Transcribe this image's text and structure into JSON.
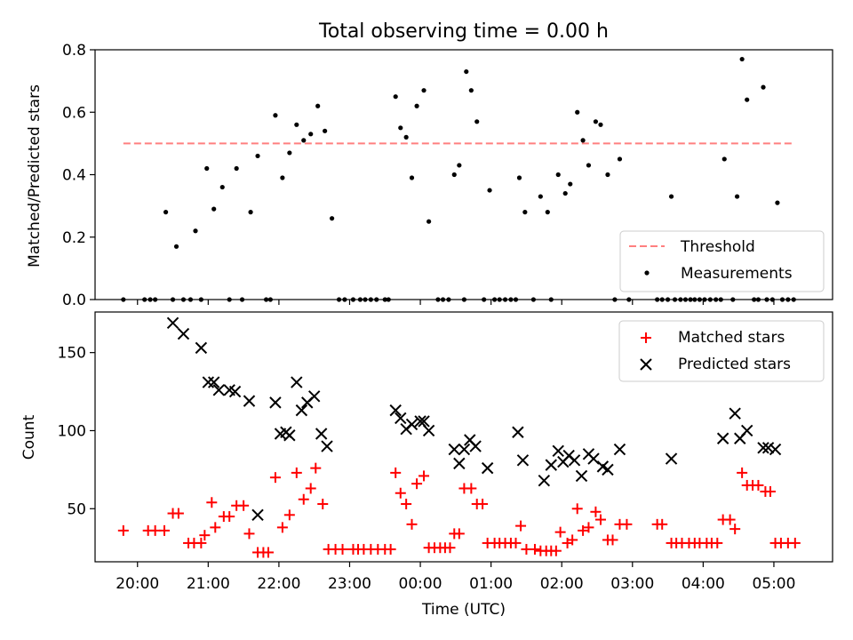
{
  "chart_data": [
    {
      "type": "scatter",
      "title": "Total observing time = 0.00 h",
      "ylabel": "Matched/Predicted stars",
      "ylim": [
        0,
        0.8
      ],
      "yticks": [
        "0.0",
        "0.2",
        "0.4",
        "0.6",
        "0.8"
      ],
      "xlim_hours": [
        -4.6,
        5.83
      ],
      "xticks": [
        -4,
        -3,
        -2,
        -1,
        0,
        1,
        2,
        3,
        4,
        5
      ],
      "threshold": {
        "value": 0.5,
        "x_range": [
          -4.2,
          5.3
        ],
        "color": "#ff7f7f",
        "label": "Threshold"
      },
      "legend": {
        "position": "bottom-right",
        "entries": [
          "Threshold",
          "Measurements"
        ]
      },
      "series": [
        {
          "name": "Measurements",
          "color": "#000000",
          "points": [
            [
              -4.2,
              0
            ],
            [
              -3.9,
              0
            ],
            [
              -3.82,
              0
            ],
            [
              -3.75,
              0
            ],
            [
              -3.6,
              0.28
            ],
            [
              -3.5,
              0
            ],
            [
              -3.45,
              0.17
            ],
            [
              -3.35,
              0
            ],
            [
              -3.25,
              0
            ],
            [
              -3.1,
              0
            ],
            [
              -3.18,
              0.22
            ],
            [
              -3.02,
              0.42
            ],
            [
              -2.92,
              0.29
            ],
            [
              -2.8,
              0.36
            ],
            [
              -2.7,
              0
            ],
            [
              -2.6,
              0.42
            ],
            [
              -2.52,
              0
            ],
            [
              -2.4,
              0.28
            ],
            [
              -2.3,
              0.46
            ],
            [
              -2.18,
              0
            ],
            [
              -2.12,
              0
            ],
            [
              -2.05,
              0.59
            ],
            [
              -1.95,
              0.39
            ],
            [
              -1.85,
              0.47
            ],
            [
              -1.75,
              0.56
            ],
            [
              -1.65,
              0.51
            ],
            [
              -1.55,
              0.53
            ],
            [
              -1.45,
              0.62
            ],
            [
              -1.35,
              0.54
            ],
            [
              -1.25,
              0.26
            ],
            [
              -1.15,
              0
            ],
            [
              -1.07,
              0
            ],
            [
              -0.95,
              0
            ],
            [
              -0.85,
              0
            ],
            [
              -0.78,
              0
            ],
            [
              -0.7,
              0
            ],
            [
              -0.62,
              0
            ],
            [
              -0.5,
              0
            ],
            [
              -0.45,
              0
            ],
            [
              -0.35,
              0.65
            ],
            [
              -0.28,
              0.55
            ],
            [
              -0.2,
              0.52
            ],
            [
              -0.12,
              0.39
            ],
            [
              -0.05,
              0.62
            ],
            [
              0.05,
              0.67
            ],
            [
              0.12,
              0.25
            ],
            [
              0.25,
              0
            ],
            [
              0.32,
              0
            ],
            [
              0.4,
              0
            ],
            [
              0.48,
              0.4
            ],
            [
              0.55,
              0.43
            ],
            [
              0.62,
              0
            ],
            [
              0.65,
              0.73
            ],
            [
              0.72,
              0.67
            ],
            [
              0.8,
              0.57
            ],
            [
              0.9,
              0
            ],
            [
              0.98,
              0.35
            ],
            [
              1.05,
              0
            ],
            [
              1.12,
              0
            ],
            [
              1.2,
              0
            ],
            [
              1.28,
              0
            ],
            [
              1.35,
              0
            ],
            [
              1.4,
              0.39
            ],
            [
              1.48,
              0.28
            ],
            [
              1.6,
              0
            ],
            [
              1.7,
              0.33
            ],
            [
              1.8,
              0.28
            ],
            [
              1.85,
              0
            ],
            [
              1.95,
              0.4
            ],
            [
              2.05,
              0.34
            ],
            [
              2.12,
              0.37
            ],
            [
              2.22,
              0.6
            ],
            [
              2.3,
              0.51
            ],
            [
              2.38,
              0.43
            ],
            [
              2.48,
              0.57
            ],
            [
              2.55,
              0.56
            ],
            [
              2.65,
              0.4
            ],
            [
              2.75,
              0
            ],
            [
              2.82,
              0.45
            ],
            [
              2.95,
              0
            ],
            [
              3.35,
              0
            ],
            [
              3.42,
              0
            ],
            [
              3.5,
              0
            ],
            [
              3.55,
              0.33
            ],
            [
              3.6,
              0
            ],
            [
              3.68,
              0
            ],
            [
              3.75,
              0
            ],
            [
              3.82,
              0
            ],
            [
              3.88,
              0
            ],
            [
              3.95,
              0
            ],
            [
              4.02,
              0
            ],
            [
              4.1,
              0
            ],
            [
              4.18,
              0
            ],
            [
              4.25,
              0
            ],
            [
              4.3,
              0.45
            ],
            [
              4.42,
              0
            ],
            [
              4.48,
              0.33
            ],
            [
              4.55,
              0.77
            ],
            [
              4.62,
              0.64
            ],
            [
              4.72,
              0
            ],
            [
              4.78,
              0
            ],
            [
              4.85,
              0.68
            ],
            [
              4.9,
              0
            ],
            [
              5.05,
              0.31
            ],
            [
              4.98,
              0
            ],
            [
              5.12,
              0
            ],
            [
              5.2,
              0
            ],
            [
              5.28,
              0
            ]
          ]
        }
      ]
    },
    {
      "type": "scatter",
      "xlabel": "Time (UTC)",
      "ylabel": "Count",
      "ylim": [
        16,
        176
      ],
      "yticks": [
        "50",
        "100",
        "150"
      ],
      "xlim_hours": [
        -4.6,
        5.83
      ],
      "xticks": [
        -4,
        -3,
        -2,
        -1,
        0,
        1,
        2,
        3,
        4,
        5
      ],
      "xtick_labels": [
        "20:00",
        "21:00",
        "22:00",
        "23:00",
        "00:00",
        "01:00",
        "02:00",
        "03:00",
        "04:00",
        "05:00"
      ],
      "legend": {
        "position": "top-right",
        "entries": [
          "Matched stars",
          "Predicted stars"
        ]
      },
      "series": [
        {
          "name": "Matched stars",
          "marker": "plus",
          "color": "#ff0000",
          "points": [
            [
              -4.2,
              36
            ],
            [
              -3.85,
              36
            ],
            [
              -3.75,
              36
            ],
            [
              -3.62,
              36
            ],
            [
              -3.5,
              47
            ],
            [
              -3.42,
              47
            ],
            [
              -3.28,
              28
            ],
            [
              -3.2,
              28
            ],
            [
              -3.1,
              28
            ],
            [
              -3.05,
              33
            ],
            [
              -2.95,
              54
            ],
            [
              -2.9,
              38
            ],
            [
              -2.78,
              45
            ],
            [
              -2.7,
              45
            ],
            [
              -2.6,
              52
            ],
            [
              -2.5,
              52
            ],
            [
              -2.42,
              34
            ],
            [
              -2.3,
              22
            ],
            [
              -2.22,
              22
            ],
            [
              -2.15,
              22
            ],
            [
              -2.05,
              70
            ],
            [
              -1.95,
              38
            ],
            [
              -1.85,
              46
            ],
            [
              -1.75,
              73
            ],
            [
              -1.65,
              56
            ],
            [
              -1.55,
              63
            ],
            [
              -1.48,
              76
            ],
            [
              -1.38,
              53
            ],
            [
              -1.3,
              24
            ],
            [
              -1.2,
              24
            ],
            [
              -1.1,
              24
            ],
            [
              -0.95,
              24
            ],
            [
              -0.88,
              24
            ],
            [
              -0.8,
              24
            ],
            [
              -0.7,
              24
            ],
            [
              -0.6,
              24
            ],
            [
              -0.5,
              24
            ],
            [
              -0.42,
              24
            ],
            [
              -0.35,
              73
            ],
            [
              -0.28,
              60
            ],
            [
              -0.2,
              53
            ],
            [
              -0.12,
              40
            ],
            [
              -0.05,
              66
            ],
            [
              0.05,
              71
            ],
            [
              0.12,
              25
            ],
            [
              0.2,
              25
            ],
            [
              0.28,
              25
            ],
            [
              0.35,
              25
            ],
            [
              0.42,
              25
            ],
            [
              0.48,
              34
            ],
            [
              0.55,
              34
            ],
            [
              0.62,
              63
            ],
            [
              0.72,
              63
            ],
            [
              0.8,
              53
            ],
            [
              0.88,
              53
            ],
            [
              0.95,
              28
            ],
            [
              1.05,
              28
            ],
            [
              1.12,
              28
            ],
            [
              1.2,
              28
            ],
            [
              1.28,
              28
            ],
            [
              1.35,
              28
            ],
            [
              1.42,
              39
            ],
            [
              1.5,
              24
            ],
            [
              1.62,
              24
            ],
            [
              1.7,
              23
            ],
            [
              1.78,
              23
            ],
            [
              1.85,
              23
            ],
            [
              1.92,
              23
            ],
            [
              1.98,
              35
            ],
            [
              2.08,
              28
            ],
            [
              2.15,
              30
            ],
            [
              2.22,
              50
            ],
            [
              2.3,
              36
            ],
            [
              2.38,
              38
            ],
            [
              2.48,
              48
            ],
            [
              2.55,
              43
            ],
            [
              2.65,
              30
            ],
            [
              2.72,
              30
            ],
            [
              2.82,
              40
            ],
            [
              2.92,
              40
            ],
            [
              3.35,
              40
            ],
            [
              3.42,
              40
            ],
            [
              3.55,
              28
            ],
            [
              3.62,
              28
            ],
            [
              3.7,
              28
            ],
            [
              3.8,
              28
            ],
            [
              3.88,
              28
            ],
            [
              3.95,
              28
            ],
            [
              4.05,
              28
            ],
            [
              4.12,
              28
            ],
            [
              4.2,
              28
            ],
            [
              4.28,
              43
            ],
            [
              4.38,
              43
            ],
            [
              4.45,
              37
            ],
            [
              4.55,
              73
            ],
            [
              4.62,
              65
            ],
            [
              4.7,
              65
            ],
            [
              4.78,
              65
            ],
            [
              4.88,
              61
            ],
            [
              4.95,
              61
            ],
            [
              5.02,
              28
            ],
            [
              5.1,
              28
            ],
            [
              5.2,
              28
            ],
            [
              5.3,
              28
            ]
          ]
        },
        {
          "name": "Predicted stars",
          "marker": "x",
          "color": "#000000",
          "points": [
            [
              -3.5,
              169
            ],
            [
              -3.35,
              162
            ],
            [
              -3.1,
              153
            ],
            [
              -3.0,
              131
            ],
            [
              -2.92,
              131
            ],
            [
              -2.85,
              126
            ],
            [
              -2.7,
              126
            ],
            [
              -2.62,
              125
            ],
            [
              -2.42,
              119
            ],
            [
              -2.3,
              46
            ],
            [
              -2.05,
              118
            ],
            [
              -1.98,
              98
            ],
            [
              -1.9,
              99
            ],
            [
              -1.85,
              97
            ],
            [
              -1.75,
              131
            ],
            [
              -1.68,
              113
            ],
            [
              -1.6,
              118
            ],
            [
              -1.5,
              122
            ],
            [
              -1.4,
              98
            ],
            [
              -1.32,
              90
            ],
            [
              -0.35,
              113
            ],
            [
              -0.28,
              108
            ],
            [
              -0.2,
              101
            ],
            [
              -0.12,
              104
            ],
            [
              0,
              106
            ],
            [
              0.05,
              106
            ],
            [
              0.12,
              100
            ],
            [
              0.48,
              88
            ],
            [
              0.55,
              79
            ],
            [
              0.62,
              88
            ],
            [
              0.7,
              94
            ],
            [
              0.78,
              90
            ],
            [
              0.95,
              76
            ],
            [
              1.38,
              99
            ],
            [
              1.45,
              81
            ],
            [
              1.75,
              68
            ],
            [
              1.85,
              78
            ],
            [
              1.95,
              87
            ],
            [
              2.02,
              80
            ],
            [
              2.1,
              84
            ],
            [
              2.18,
              81
            ],
            [
              2.28,
              71
            ],
            [
              2.38,
              85
            ],
            [
              2.45,
              82
            ],
            [
              2.58,
              77
            ],
            [
              2.65,
              75
            ],
            [
              2.82,
              88
            ],
            [
              3.55,
              82
            ],
            [
              4.28,
              95
            ],
            [
              4.45,
              111
            ],
            [
              4.52,
              95
            ],
            [
              4.62,
              100
            ],
            [
              4.85,
              89
            ],
            [
              4.92,
              89
            ],
            [
              5.02,
              88
            ]
          ]
        }
      ]
    }
  ]
}
